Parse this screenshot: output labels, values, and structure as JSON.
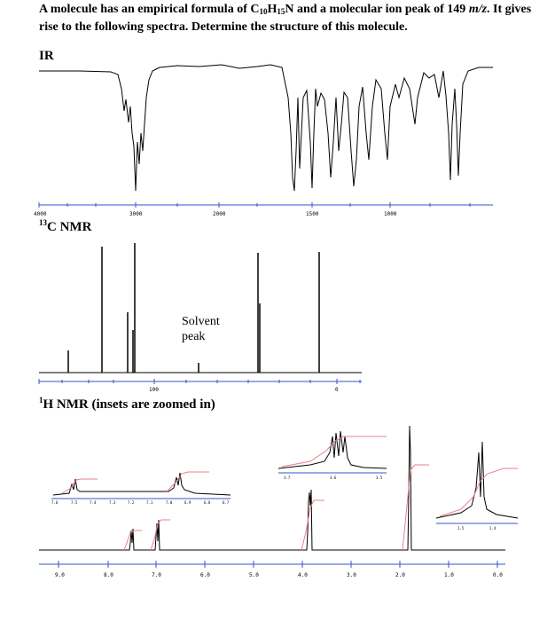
{
  "question": {
    "part1": "A molecule has an empirical formula of C",
    "c_sub": "10",
    "part2": "H",
    "h_sub": "15",
    "part3": "N and a molecular ion peak of 149 ",
    "unit": "m/z",
    "part4": ". It gives rise to the following spectra. Determine the structure of this molecule."
  },
  "ir": {
    "label": "IR",
    "axis_ticks": [
      "4000",
      "3000",
      "2000",
      "1500",
      "1000"
    ]
  },
  "c13": {
    "label_sup": "13",
    "label": "C NMR",
    "axis_ticks": [
      "100",
      "0"
    ],
    "solvent_line1": "Solvent",
    "solvent_line2": "peak"
  },
  "h1": {
    "label_sup": "1",
    "label": "H NMR (insets are zoomed in)",
    "axis_ticks": [
      "9.0",
      "8.0",
      "7.0",
      "6.0",
      "5.0",
      "4.0",
      "3.0",
      "2.0",
      "1.0",
      "0.0"
    ],
    "inset_aromatic_ticks": [
      "7.6",
      "7.5",
      "7.4",
      "7.3",
      "7.2",
      "7.1",
      "7.0",
      "6.9",
      "6.8",
      "6.7"
    ],
    "inset_mid_ticks": [
      "3.7",
      "3.6",
      "3.5"
    ],
    "inset_right_ticks": [
      "1.5",
      "1.4"
    ]
  },
  "colors": {
    "trace": "#000000",
    "integral": "#e8808a",
    "axis": "#3355cc"
  }
}
